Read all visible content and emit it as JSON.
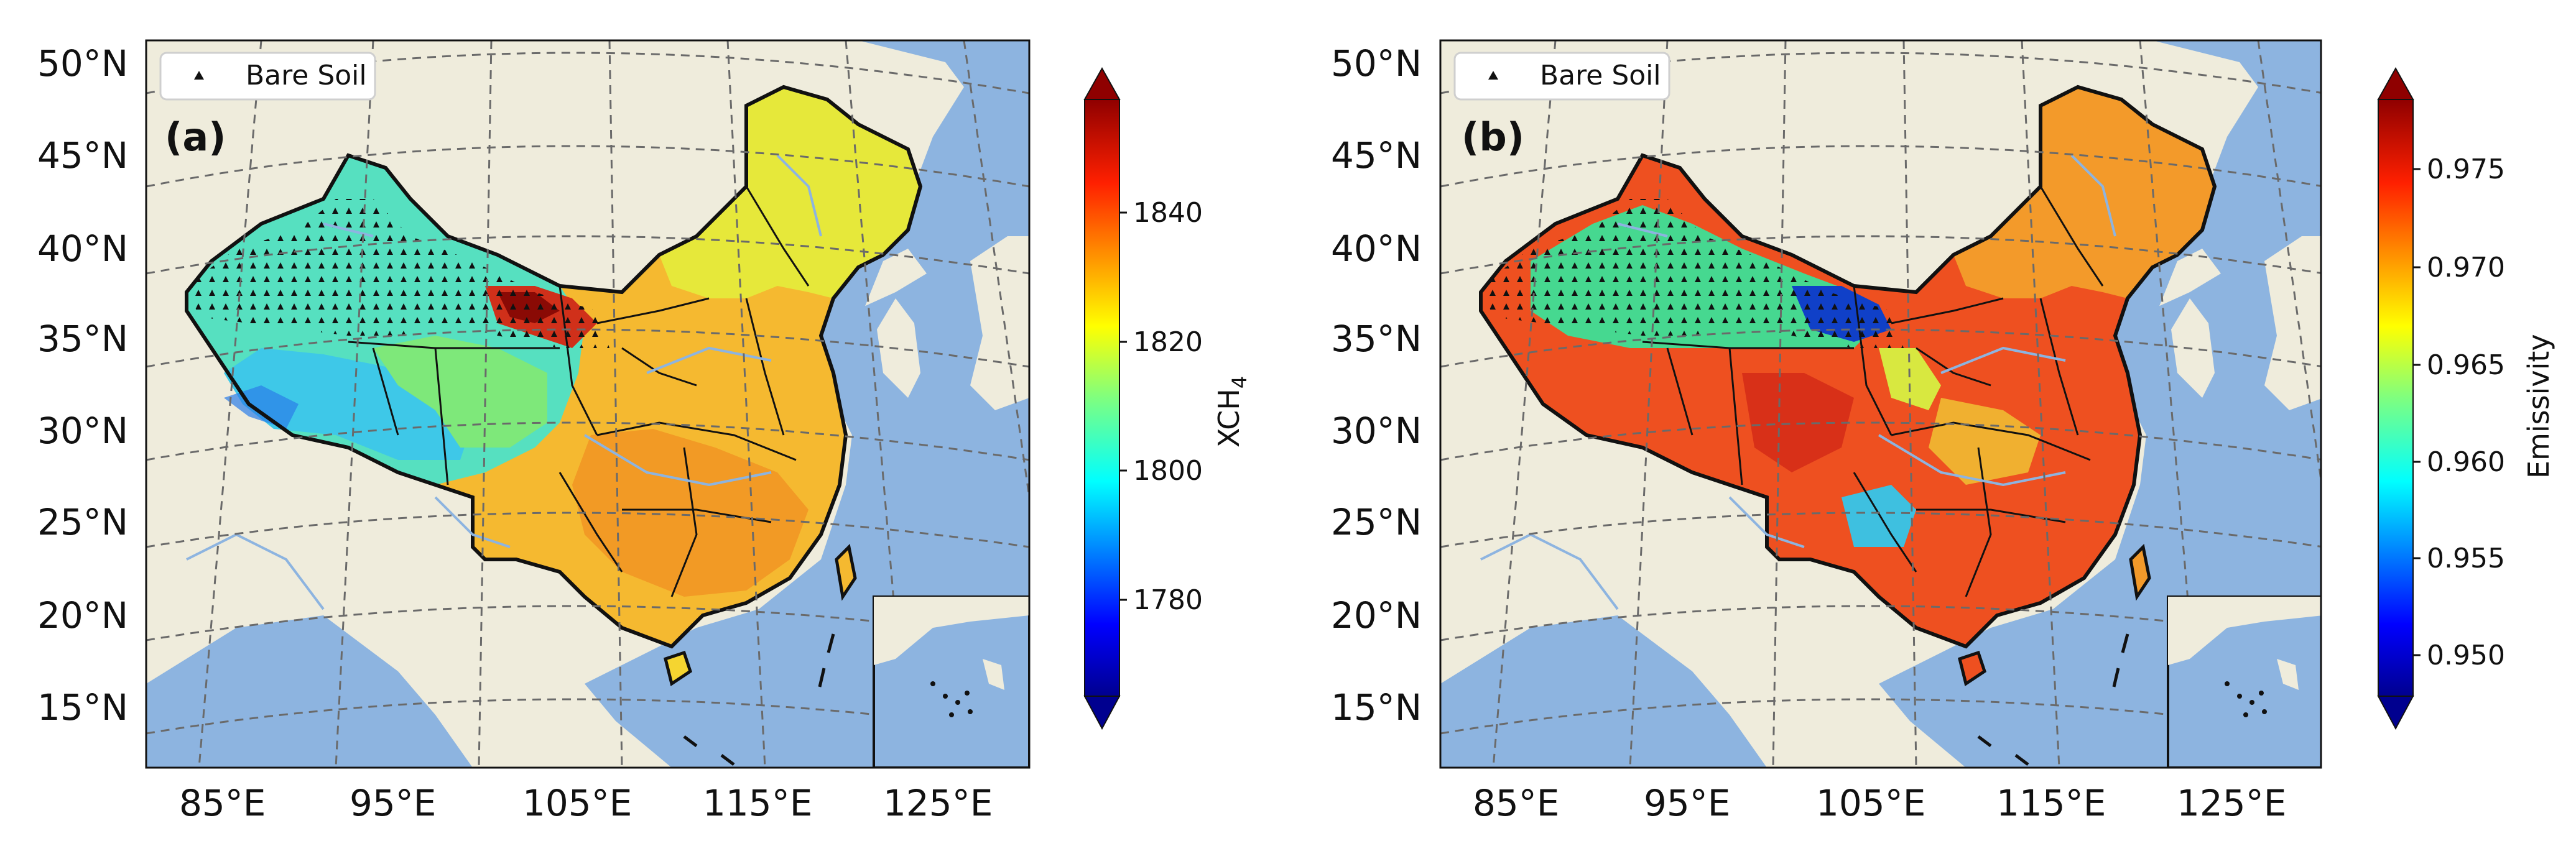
{
  "panels": [
    {
      "label": "(a)",
      "legend": "Bare Soil",
      "colorbar": {
        "label_main": "XCH",
        "label_sub": "4",
        "ticks": [
          "1780",
          "1800",
          "1820",
          "1840"
        ]
      }
    },
    {
      "label": "(b)",
      "legend": "Bare Soil",
      "colorbar": {
        "label_main": "Emissivity",
        "label_sub": "",
        "ticks": [
          "0.950",
          "0.955",
          "0.960",
          "0.965",
          "0.970",
          "0.975"
        ]
      }
    }
  ],
  "axes": {
    "lat_ticks": [
      "50°N",
      "45°N",
      "40°N",
      "35°N",
      "30°N",
      "25°N",
      "20°N",
      "15°N"
    ],
    "lon_ticks": [
      "85°E",
      "95°E",
      "105°E",
      "115°E",
      "125°E"
    ]
  },
  "colors": {
    "ocean": "#8db4e0",
    "land": "#efecdc",
    "grid": "#6a6a6a"
  },
  "icons": [
    "triangle-marker-icon"
  ]
}
